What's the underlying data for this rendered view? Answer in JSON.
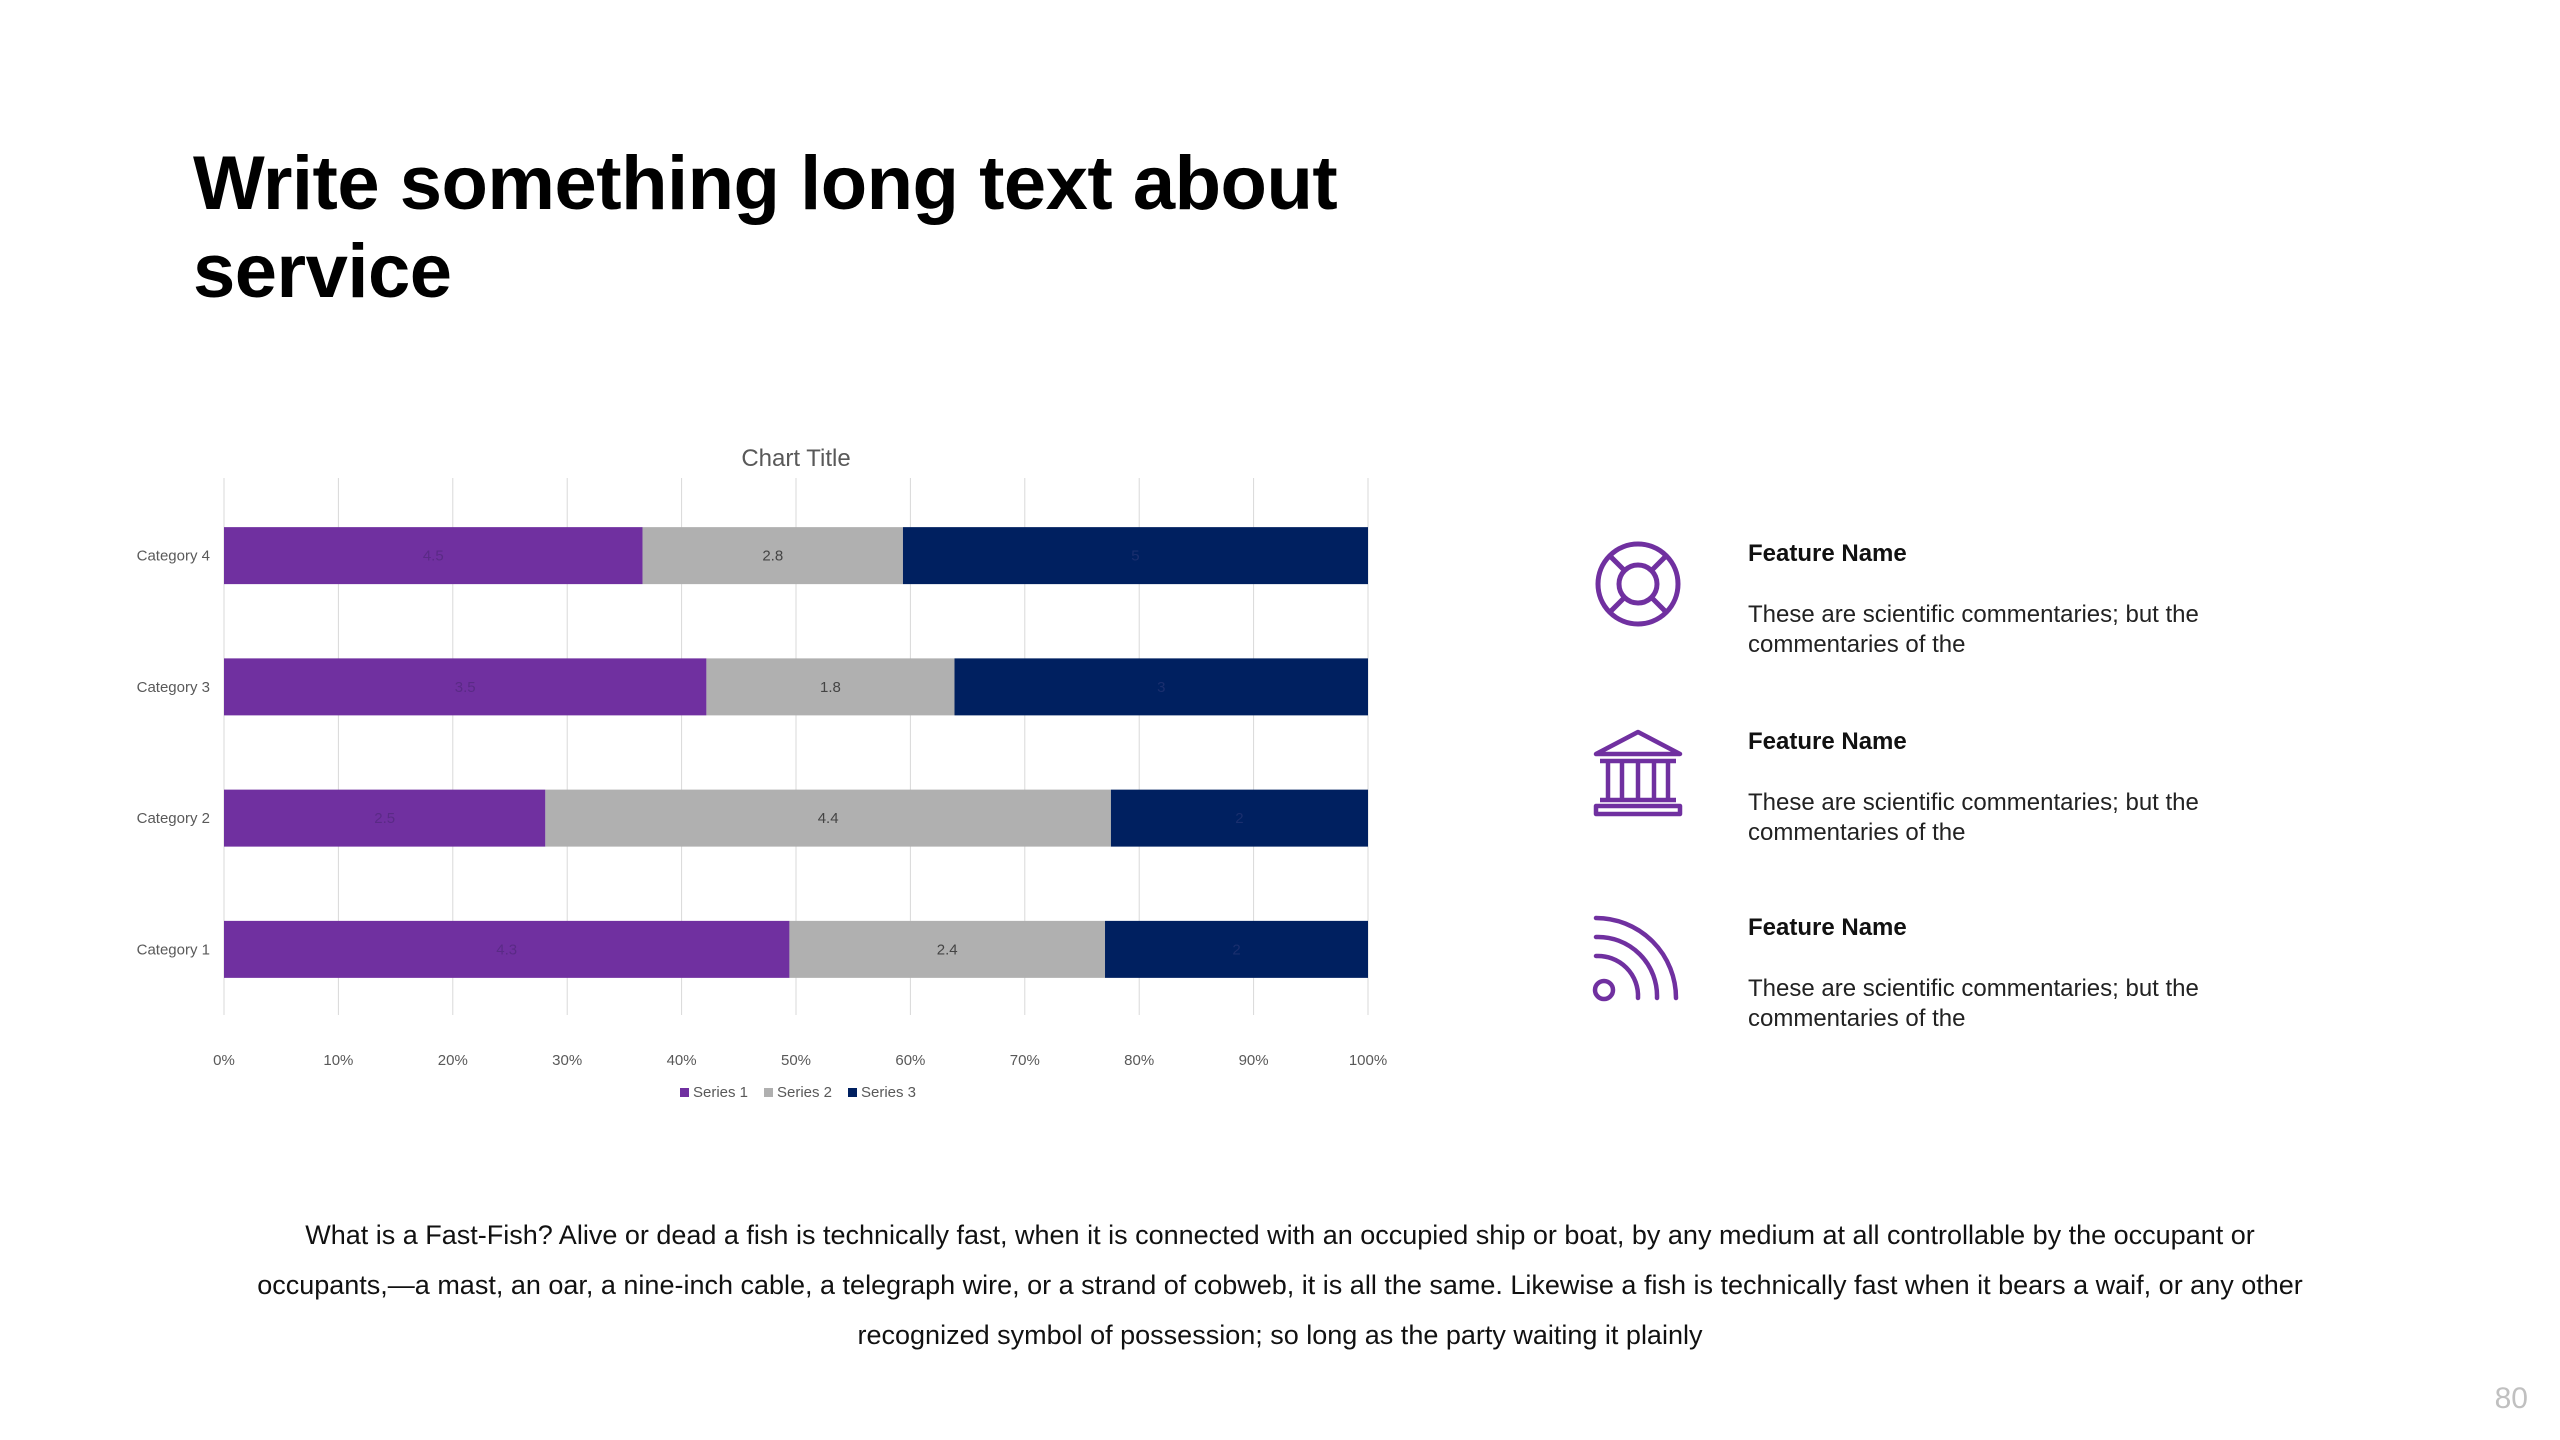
{
  "slide": {
    "title": "Write something long text about service",
    "body_text": "What is a Fast-Fish? Alive or dead a fish is technically fast, when it is connected with an occupied ship or boat, by any medium at all controllable by the occupant or occupants,—a mast, an oar, a nine-inch cable, a telegraph wire, or a strand of cobweb, it is all the same. Likewise a fish is technically fast when it bears a waif, or any other recognized symbol of possession; so long as the party waiting it plainly",
    "page_number": "80"
  },
  "features": [
    {
      "icon": "lifebuoy-icon",
      "name": "Feature Name",
      "desc": "These are scientific commentaries; but the commentaries of the"
    },
    {
      "icon": "bank-building-icon",
      "name": "Feature Name",
      "desc": "These are scientific commentaries; but the commentaries of the"
    },
    {
      "icon": "rss-feed-icon",
      "name": "Feature Name",
      "desc": "These are scientific commentaries; but the commentaries of the"
    }
  ],
  "colors": {
    "accent": "#7030A0",
    "series1": "#7030A0",
    "series2": "#B0B0B0",
    "series3": "#002060",
    "grid": "#D9D9D9"
  },
  "chart_data": {
    "type": "bar",
    "orientation": "horizontal",
    "stacking": "percent",
    "title": "Chart Title",
    "categories": [
      "Category 1",
      "Category 2",
      "Category 3",
      "Category 4"
    ],
    "series": [
      {
        "name": "Series 1",
        "values": [
          4.3,
          2.5,
          3.5,
          4.5
        ]
      },
      {
        "name": "Series 2",
        "values": [
          2.4,
          4.4,
          1.8,
          2.8
        ]
      },
      {
        "name": "Series 3",
        "values": [
          2,
          2,
          3,
          5
        ]
      }
    ],
    "x_ticks": [
      "0%",
      "10%",
      "20%",
      "30%",
      "40%",
      "50%",
      "60%",
      "70%",
      "80%",
      "90%",
      "100%"
    ],
    "xlim": [
      0,
      100
    ],
    "grid": true,
    "legend": "bottom",
    "data_labels": true
  }
}
